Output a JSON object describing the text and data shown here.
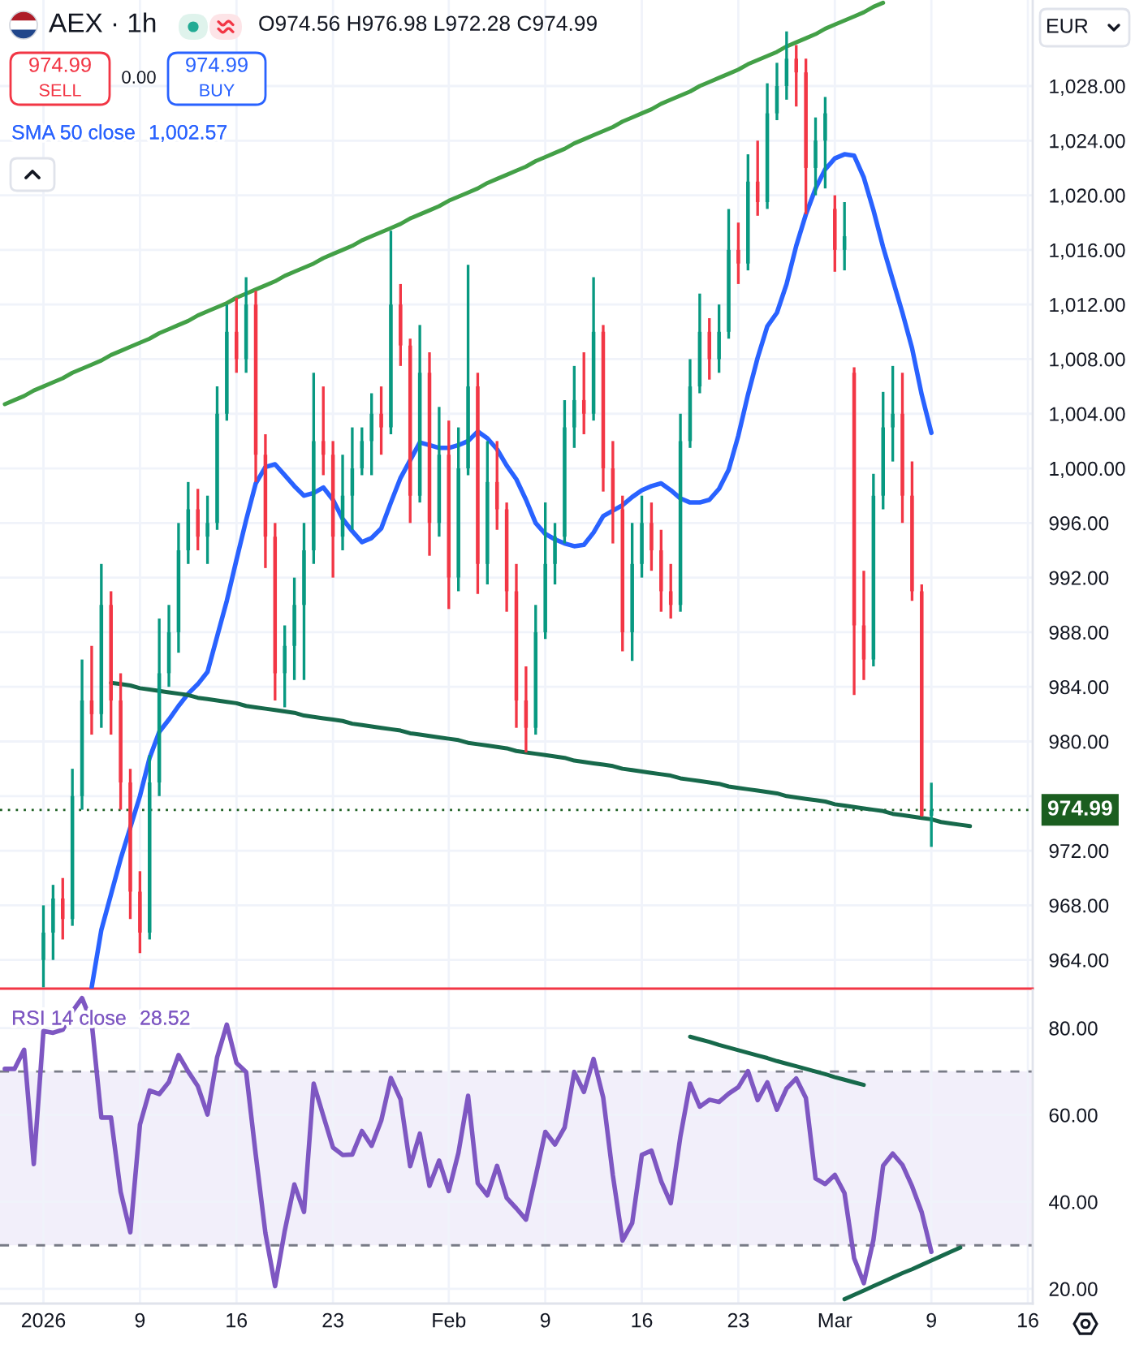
{
  "chart_data": [
    {
      "type": "candlestick",
      "title": "AEX · 1h",
      "annotations": [
        "O974.56 H976.98 L972.28 C974.99",
        "974.99",
        "SELL",
        "0.00",
        "974.99",
        "BUY",
        "1,002.57",
        "EUR"
      ],
      "categories": [
        null,
        null,
        null,
        null,
        null,
        null,
        null,
        null,
        null,
        null,
        null,
        null,
        null,
        null,
        null,
        null,
        null,
        null,
        null,
        null,
        null,
        null,
        null,
        null,
        null,
        null,
        null,
        null,
        null,
        null,
        null,
        null,
        null,
        null,
        null,
        null,
        null,
        null,
        null,
        null,
        null,
        null,
        null,
        null,
        null,
        null,
        null,
        null,
        null,
        null,
        null,
        null,
        null,
        null,
        null,
        null,
        null,
        null,
        null,
        null,
        null,
        null,
        null,
        null,
        null,
        null,
        null,
        null,
        null,
        null,
        null,
        null,
        null,
        null,
        null,
        null,
        null,
        null,
        null,
        null,
        null,
        null,
        null,
        null,
        null,
        null,
        null,
        null,
        null,
        null,
        null,
        null,
        null,
        null,
        null,
        null,
        null,
        null,
        null,
        null,
        null,
        null,
        null,
        null,
        null,
        null,
        null
      ],
      "ohlc": [
        null,
        null,
        null,
        null,
        [
          964,
          968,
          962,
          966
        ],
        [
          966,
          969.5,
          964,
          968.5
        ],
        [
          968.5,
          970,
          965.5,
          967
        ],
        [
          967,
          978,
          966.5,
          976
        ],
        [
          976,
          986,
          975,
          983
        ],
        [
          983,
          987,
          980.5,
          982
        ],
        [
          982,
          993,
          981,
          990
        ],
        [
          990,
          991,
          980.5,
          983
        ],
        [
          983,
          985,
          975,
          977
        ],
        [
          977,
          978,
          967,
          969
        ],
        [
          969,
          970.5,
          964.5,
          966
        ],
        [
          966,
          979,
          965.5,
          977
        ],
        [
          977,
          989,
          976,
          985
        ],
        [
          985,
          990,
          984,
          988
        ],
        [
          988,
          996,
          986.5,
          994
        ],
        [
          994,
          999,
          993,
          997
        ],
        [
          997,
          998.5,
          994,
          995
        ],
        [
          995,
          998,
          993,
          996
        ],
        [
          996,
          1006,
          995.5,
          1004
        ],
        [
          1004,
          1012,
          1003.5,
          1010
        ],
        [
          1010,
          1012.5,
          1007,
          1008
        ],
        [
          1008,
          1014,
          1007,
          1012
        ],
        [
          1012,
          1013,
          999,
          1001
        ],
        [
          1001,
          1002.5,
          992.7,
          995
        ],
        [
          995,
          996,
          983,
          985
        ],
        [
          985,
          988.5,
          982.5,
          987
        ],
        [
          987,
          992,
          984.5,
          990
        ],
        [
          990,
          996,
          984.5,
          994
        ],
        [
          994,
          1007,
          993,
          1002
        ],
        [
          1002,
          1006,
          999.5,
          1001
        ],
        [
          1001,
          1002,
          992,
          995
        ],
        [
          995,
          1001,
          994,
          998
        ],
        [
          998,
          1003,
          995.5,
          1000
        ],
        [
          1000,
          1003,
          999.5,
          1002
        ],
        [
          1002,
          1005.5,
          999.5,
          1004
        ],
        [
          1004,
          1006,
          1001,
          1003
        ],
        [
          1003,
          1017.4,
          1002.5,
          1012
        ],
        [
          1012,
          1013.5,
          1007.5,
          1009
        ],
        [
          1009,
          1009.5,
          996,
          998
        ],
        [
          998,
          1010.5,
          997.5,
          1007
        ],
        [
          1007,
          1008.5,
          993.6,
          996
        ],
        [
          996,
          1004.5,
          995,
          1001
        ],
        [
          1001,
          1003.5,
          989.7,
          992
        ],
        [
          992,
          1003,
          991,
          1000
        ],
        [
          1000,
          1014.9,
          999.5,
          1006
        ],
        [
          1006,
          1007,
          990.8,
          993
        ],
        [
          993,
          1002,
          991.5,
          999
        ],
        [
          999,
          1002,
          995.5,
          997
        ],
        [
          997,
          997.5,
          989.5,
          991
        ],
        [
          991,
          993,
          981,
          983
        ],
        [
          983,
          985.5,
          979.2,
          981
        ],
        [
          981,
          990,
          980.5,
          988
        ],
        [
          988,
          997.5,
          987.5,
          993
        ],
        [
          993,
          996,
          991.5,
          995
        ],
        [
          995,
          1005,
          994.5,
          1003
        ],
        [
          1003,
          1007.5,
          1001.5,
          1005
        ],
        [
          1005,
          1008.5,
          1002.5,
          1004
        ],
        [
          1004,
          1014,
          1003.5,
          1010
        ],
        [
          1010,
          1010.5,
          998.3,
          1000
        ],
        [
          1000,
          1002,
          994.5,
          997
        ],
        [
          997,
          998,
          986.6,
          988
        ],
        [
          988,
          996,
          985.9,
          993
        ],
        [
          993,
          998,
          992,
          996
        ],
        [
          996,
          997.5,
          992.5,
          994
        ],
        [
          994,
          995.5,
          989.5,
          991
        ],
        [
          991,
          993,
          989,
          990
        ],
        [
          990,
          1004,
          989.5,
          1002
        ],
        [
          1002,
          1008,
          1001.5,
          1006
        ],
        [
          1006,
          1012.8,
          1005.5,
          1010
        ],
        [
          1010,
          1011,
          1006.5,
          1008
        ],
        [
          1008,
          1012,
          1007,
          1010
        ],
        [
          1010,
          1019,
          1009.5,
          1016
        ],
        [
          1016,
          1018,
          1013.5,
          1015
        ],
        [
          1015,
          1023,
          1014.5,
          1021
        ],
        [
          1021,
          1024,
          1018.5,
          1019.5
        ],
        [
          1019.5,
          1028.2,
          1019,
          1026
        ],
        [
          1026,
          1029.7,
          1025.5,
          1028
        ],
        [
          1028,
          1032,
          1027,
          1030
        ],
        [
          1030,
          1031,
          1026.5,
          1029
        ],
        [
          1029,
          1030,
          1018.6,
          1022
        ],
        [
          1022,
          1025.7,
          1020,
          1024
        ],
        [
          1024,
          1027.2,
          1020.5,
          1026
        ],
        [
          1019,
          1020,
          1014.4,
          1016
        ],
        [
          1016,
          1019.5,
          1014.5,
          1017
        ],
        [
          1007,
          1007.4,
          983.4,
          988.5
        ],
        [
          988.5,
          992.5,
          984.5,
          986
        ],
        [
          986,
          999.6,
          985.5,
          998
        ],
        [
          998,
          1005.6,
          997,
          1003
        ],
        [
          1003,
          1007.5,
          1000.5,
          1004
        ],
        [
          1004,
          1007,
          996,
          998
        ],
        [
          998,
          1000.5,
          990.3,
          991
        ],
        [
          991,
          991.5,
          974.5,
          974.56
        ],
        [
          974.56,
          976.98,
          972.28,
          974.99
        ],
        null,
        null,
        null,
        null,
        null,
        null,
        null,
        null,
        null,
        null
      ],
      "colors": [
        null,
        null,
        null,
        null,
        "#089981",
        "#089981",
        "#f23645",
        "#089981",
        "#089981",
        "#f23645",
        "#089981",
        "#f23645",
        "#f23645",
        "#f23645",
        "#f23645",
        "#089981",
        "#089981",
        "#089981",
        "#089981",
        "#089981",
        "#f23645",
        "#089981",
        "#089981",
        "#089981",
        "#f23645",
        "#089981",
        "#f23645",
        "#f23645",
        "#f23645",
        "#089981",
        "#089981",
        "#089981",
        "#089981",
        "#f23645",
        "#f23645",
        "#089981",
        "#089981",
        "#089981",
        "#089981",
        "#f23645",
        "#089981",
        "#f23645",
        "#f23645",
        "#089981",
        "#f23645",
        "#089981",
        "#f23645",
        "#089981",
        "#089981",
        "#f23645",
        "#089981",
        "#f23645",
        "#f23645",
        "#f23645",
        "#f23645",
        "#089981",
        "#089981",
        "#089981",
        "#089981",
        "#089981",
        "#f23645",
        "#089981",
        "#f23645",
        "#f23645",
        "#f23645",
        "#089981",
        "#089981",
        "#f23645",
        "#f23645",
        "#f23645",
        "#089981",
        "#089981",
        "#089981",
        "#f23645",
        "#089981",
        "#089981",
        "#f23645",
        "#089981",
        "#f23645",
        "#089981",
        "#089981",
        "#089981",
        "#f23645",
        "#f23645",
        "#089981",
        "#089981",
        "#f23645",
        "#089981",
        "#f23645",
        "#f23645",
        "#089981",
        "#089981",
        "#089981",
        "#f23645",
        "#f23645",
        "#f23645",
        "#089981",
        null,
        null,
        null,
        null,
        null,
        null,
        null,
        null,
        null,
        null
      ],
      "series": [
        {
          "name": "SMA 50 close",
          "type": "line",
          "color": "#2962ff",
          "values": [
            null,
            null,
            null,
            null,
            null,
            null,
            null,
            null,
            null,
            962.0,
            966.2,
            968.8,
            971.4,
            973.7,
            976.0,
            978.8,
            980.7,
            981.6,
            982.6,
            983.5,
            984.2,
            985.1,
            987.7,
            990.3,
            993.3,
            996.2,
            998.9,
            1000.1,
            1000.3,
            999.5,
            998.7,
            998.0,
            998.2,
            998.6,
            997.7,
            996.3,
            995.4,
            994.6,
            994.9,
            995.6,
            997.5,
            999.3,
            1000.6,
            1001.9,
            1001.7,
            1001.5,
            1001.5,
            1001.7,
            1002.0,
            1002.7,
            1002.2,
            1001.4,
            1000.2,
            999.2,
            997.7,
            996.0,
            995.2,
            994.8,
            994.5,
            994.3,
            994.4,
            995.3,
            996.5,
            996.9,
            997.3,
            997.9,
            998.4,
            998.7,
            998.9,
            998.4,
            997.8,
            997.5,
            997.5,
            997.7,
            998.5,
            999.9,
            1002.4,
            1005.4,
            1008.1,
            1010.4,
            1011.4,
            1013.5,
            1016.3,
            1018.6,
            1020.5,
            1021.9,
            1022.7,
            1023.0,
            1022.9,
            1021.3,
            1018.9,
            1016.2,
            1013.8,
            1011.4,
            1008.8,
            1005.4,
            1002.6,
            null,
            null,
            null,
            null,
            null,
            null,
            null,
            null,
            null,
            null
          ]
        },
        {
          "type": "line",
          "color": "#43a047",
          "values": [
            1004.7,
            1005.0,
            1005.3,
            1005.7,
            1006.0,
            1006.3,
            1006.6,
            1007.0,
            1007.3,
            1007.6,
            1007.9,
            1008.3,
            1008.6,
            1008.9,
            1009.2,
            1009.5,
            1009.9,
            1010.2,
            1010.5,
            1010.8,
            1011.2,
            1011.5,
            1011.8,
            1012.1,
            1012.5,
            1012.8,
            1013.1,
            1013.4,
            1013.7,
            1014.1,
            1014.4,
            1014.7,
            1015.0,
            1015.4,
            1015.7,
            1016.0,
            1016.3,
            1016.7,
            1017.0,
            1017.3,
            1017.6,
            1017.9,
            1018.3,
            1018.6,
            1018.9,
            1019.2,
            1019.6,
            1019.9,
            1020.2,
            1020.5,
            1020.9,
            1021.2,
            1021.5,
            1021.8,
            1022.1,
            1022.5,
            1022.8,
            1023.1,
            1023.4,
            1023.8,
            1024.1,
            1024.4,
            1024.7,
            1025.0,
            1025.4,
            1025.7,
            1026.0,
            1026.3,
            1026.7,
            1027.0,
            1027.3,
            1027.6,
            1028.0,
            1028.3,
            1028.6,
            1028.9,
            1029.2,
            1029.6,
            1029.9,
            1030.2,
            1030.5,
            1030.9,
            1031.2,
            1031.5,
            1031.8,
            1032.2,
            1032.5,
            1032.8,
            1033.1,
            1033.4,
            1033.8,
            1034.1,
            null,
            null,
            null,
            null,
            null,
            null,
            null,
            null,
            null,
            null,
            null,
            null,
            null,
            null,
            null
          ]
        },
        {
          "type": "line",
          "color": "#17694b",
          "values": [
            null,
            null,
            null,
            null,
            null,
            null,
            null,
            null,
            null,
            null,
            null,
            984.3,
            984.2,
            984.1,
            983.9,
            983.8,
            983.7,
            983.6,
            983.5,
            983.4,
            983.2,
            983.1,
            983.0,
            982.9,
            982.8,
            982.6,
            982.5,
            982.4,
            982.3,
            982.2,
            982.1,
            981.9,
            981.8,
            981.7,
            981.6,
            981.5,
            981.3,
            981.2,
            981.1,
            981.0,
            980.9,
            980.8,
            980.6,
            980.5,
            980.4,
            980.3,
            980.2,
            980.1,
            979.9,
            979.8,
            979.7,
            979.6,
            979.5,
            979.3,
            979.2,
            979.1,
            979.0,
            978.9,
            978.8,
            978.6,
            978.5,
            978.4,
            978.3,
            978.2,
            978.0,
            977.9,
            977.8,
            977.7,
            977.6,
            977.5,
            977.3,
            977.2,
            977.1,
            977.0,
            976.9,
            976.7,
            976.6,
            976.5,
            976.4,
            976.3,
            976.2,
            976.0,
            975.9,
            975.8,
            975.7,
            975.6,
            975.4,
            975.3,
            975.2,
            975.1,
            975.0,
            974.9,
            974.7,
            974.6,
            974.5,
            974.4,
            974.3,
            974.1,
            974.0,
            973.9,
            973.8,
            null,
            null,
            null,
            null,
            null,
            null
          ]
        }
      ],
      "ylim": [
        961.9,
        1034.3
      ],
      "yticks": [
        {
          "value": 964,
          "label": "964.00"
        },
        {
          "value": 968,
          "label": "968.00"
        },
        {
          "value": 972,
          "label": "972.00"
        },
        {
          "value": 976,
          "label": null
        },
        {
          "value": 980,
          "label": "980.00"
        },
        {
          "value": 984,
          "label": "984.00"
        },
        {
          "value": 988,
          "label": "988.00"
        },
        {
          "value": 992,
          "label": "992.00"
        },
        {
          "value": 996,
          "label": "996.00"
        },
        {
          "value": 1000,
          "label": "1,000.00"
        },
        {
          "value": 1004,
          "label": "1,004.00"
        },
        {
          "value": 1008,
          "label": "1,008.00"
        },
        {
          "value": 1012,
          "label": "1,012.00"
        },
        {
          "value": 1016,
          "label": "1,016.00"
        },
        {
          "value": 1020,
          "label": "1,020.00"
        },
        {
          "value": 1024,
          "label": "1,024.00"
        },
        {
          "value": 1028,
          "label": "1,028.00"
        }
      ],
      "ref_lines": [
        {
          "axis": "y",
          "value": 974.99,
          "label": "974.99",
          "color": "#1b5e20",
          "line_style": "dotted"
        }
      ],
      "grid": true,
      "legend": "top left"
    },
    {
      "type": "line",
      "annotations": [
        "28.52"
      ],
      "categories": [
        null,
        null,
        null,
        null,
        "2026",
        null,
        null,
        null,
        null,
        null,
        null,
        null,
        null,
        null,
        "9",
        null,
        null,
        null,
        null,
        null,
        null,
        null,
        null,
        null,
        "16",
        null,
        null,
        null,
        null,
        null,
        null,
        null,
        null,
        null,
        "23",
        null,
        null,
        null,
        null,
        null,
        null,
        null,
        null,
        null,
        null,
        null,
        "Feb",
        null,
        null,
        null,
        null,
        null,
        null,
        null,
        null,
        null,
        "9",
        null,
        null,
        null,
        null,
        null,
        null,
        null,
        null,
        null,
        "16",
        null,
        null,
        null,
        null,
        null,
        null,
        null,
        null,
        null,
        "23",
        null,
        null,
        null,
        null,
        null,
        null,
        null,
        null,
        null,
        "Mar",
        null,
        null,
        null,
        null,
        null,
        null,
        null,
        null,
        null,
        "9",
        null,
        null,
        null,
        null,
        null,
        null,
        null,
        null,
        null,
        "16"
      ],
      "series": [
        {
          "name": "RSI 14 close",
          "color": "#7e57c2",
          "values": [
            70.6,
            70.6,
            75.0,
            48.7,
            79.3,
            78.9,
            79.6,
            83.8,
            86.9,
            81.3,
            59.4,
            59.4,
            42.3,
            33.0,
            57.8,
            65.6,
            64.8,
            67.6,
            73.8,
            70.0,
            66.6,
            60.1,
            73.3,
            80.8,
            72.0,
            69.9,
            50.8,
            32.8,
            20.6,
            33.3,
            44.0,
            37.7,
            67.2,
            59.8,
            52.5,
            50.8,
            50.9,
            56.3,
            52.9,
            58.7,
            68.5,
            63.6,
            48.2,
            55.7,
            43.7,
            49.5,
            42.5,
            51.3,
            64.4,
            44.3,
            41.5,
            48.3,
            40.9,
            38.5,
            35.9,
            45.9,
            56.1,
            53.2,
            57.1,
            69.9,
            65.3,
            72.9,
            64.0,
            46.1,
            31.1,
            35.1,
            50.8,
            51.8,
            44.8,
            39.7,
            55.1,
            67.2,
            61.9,
            63.5,
            63.0,
            64.9,
            66.4,
            70.1,
            63.4,
            67.5,
            61.2,
            66.1,
            68.4,
            63.9,
            45.4,
            44.1,
            46.2,
            42.0,
            27.0,
            21.3,
            31.3,
            48.3,
            51.1,
            48.5,
            43.6,
            37.6,
            28.5,
            null,
            null,
            null,
            null,
            null,
            null,
            null,
            null,
            null,
            null
          ]
        },
        {
          "color": "#17694b",
          "values": [
            null,
            null,
            null,
            null,
            null,
            null,
            null,
            null,
            null,
            null,
            null,
            null,
            null,
            null,
            null,
            null,
            null,
            null,
            null,
            null,
            null,
            null,
            null,
            null,
            null,
            null,
            null,
            null,
            null,
            null,
            null,
            null,
            null,
            null,
            null,
            null,
            null,
            null,
            null,
            null,
            null,
            null,
            null,
            null,
            null,
            null,
            null,
            null,
            null,
            null,
            null,
            null,
            null,
            null,
            null,
            null,
            null,
            null,
            null,
            null,
            null,
            null,
            null,
            null,
            null,
            null,
            null,
            null,
            null,
            null,
            null,
            78.0,
            77.4,
            76.8,
            76.1,
            75.5,
            74.9,
            74.3,
            73.7,
            73.1,
            72.4,
            71.8,
            71.2,
            70.6,
            70.0,
            69.4,
            68.7,
            68.1,
            67.5,
            66.9,
            null,
            null,
            null,
            null,
            null,
            null,
            null,
            null,
            null,
            null,
            null,
            null,
            null,
            null,
            null,
            null,
            null
          ]
        },
        {
          "color": "#17694b",
          "values": [
            null,
            null,
            null,
            null,
            null,
            null,
            null,
            null,
            null,
            null,
            null,
            null,
            null,
            null,
            null,
            null,
            null,
            null,
            null,
            null,
            null,
            null,
            null,
            null,
            null,
            null,
            null,
            null,
            null,
            null,
            null,
            null,
            null,
            null,
            null,
            null,
            null,
            null,
            null,
            null,
            null,
            null,
            null,
            null,
            null,
            null,
            null,
            null,
            null,
            null,
            null,
            null,
            null,
            null,
            null,
            null,
            null,
            null,
            null,
            null,
            null,
            null,
            null,
            null,
            null,
            null,
            null,
            null,
            null,
            null,
            null,
            null,
            null,
            null,
            null,
            null,
            null,
            null,
            null,
            null,
            null,
            null,
            null,
            null,
            null,
            null,
            null,
            17.6,
            18.6,
            19.6,
            20.6,
            21.6,
            22.6,
            23.6,
            24.5,
            25.5,
            26.5,
            27.5,
            28.5,
            29.5,
            null,
            null,
            null,
            null,
            null,
            null,
            null
          ]
        }
      ],
      "ylim": [
        16.6,
        88.7
      ],
      "yticks": [
        {
          "value": 20,
          "label": "20.00"
        },
        {
          "value": 40,
          "label": "40.00"
        },
        {
          "value": 60,
          "label": "60.00"
        },
        {
          "value": 80,
          "label": "80.00"
        }
      ],
      "bands": [
        {
          "axis": "y",
          "from": 30,
          "to": 70,
          "color": "#f2effa"
        }
      ],
      "ref_lines": [
        {
          "axis": "y",
          "value": 70,
          "color": "#787b86",
          "line_style": "dashed"
        },
        {
          "axis": "y",
          "value": 30,
          "color": "#787b86",
          "line_style": "dashed"
        }
      ],
      "grid": true,
      "legend": "top left"
    }
  ]
}
